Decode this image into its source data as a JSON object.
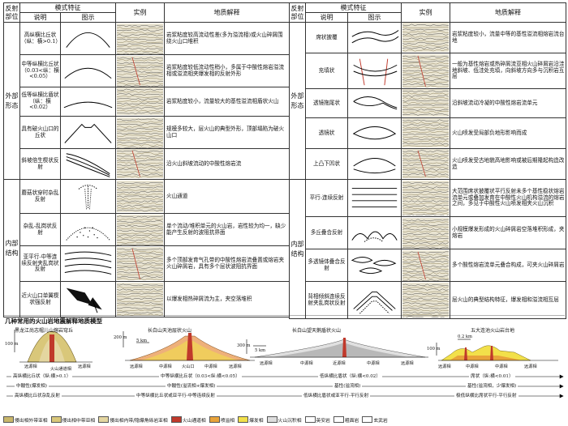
{
  "headers": {
    "region": "反射部位",
    "mode_feature": "模式特征",
    "description": "说明",
    "diagram": "图示",
    "example": "实例",
    "interpretation": "地质解释"
  },
  "left": {
    "region_outer": "外部形态",
    "region_inner": "内部结构",
    "rows": [
      {
        "desc": "高纵横比丘状（纵：横>0.1）",
        "interp": "岩浆粘度较高流动性差(多为溢流相)或火山碎屑围绕火山口堆积"
      },
      {
        "desc": "中等纵横比丘状（0.03<纵：横<0.05）",
        "interp": "岩浆粘度较低流动性稍小，多属于中酸性熔岩溢流相或溢流相夹爆发相的反射外形"
      },
      {
        "desc": "低等纵横比盾状（纵：横<0.02）",
        "interp": "岩浆粘度较小，流量较大的基性溢流相盾状火山"
      },
      {
        "desc": "具有破火山口的丘状",
        "interp": "规模多较大，层火山的典型外形，顶部塌陷为破火山口"
      },
      {
        "desc": "斜坡倍生楔状反射",
        "interp": "沿火山斜坡流动的中酸性熔岩流"
      },
      {
        "desc": "蘑菇状穿时杂乱反射",
        "interp": "火山通道"
      },
      {
        "desc": "杂乱-乱岗状反射",
        "interp": "单个流动/堆积单元的火山岩，岩性较为均一，缺少能产生反射的波阻抗界面"
      },
      {
        "desc": "亚平行-中等连续反射夹乱岗状反射",
        "interp": "多个顶部发育气孔带的中酸性熔岩流叠置或熔岩夹火山碎屑岩，具有多个层状波阻抗界面"
      },
      {
        "desc": "近火山口单翼楔状强反射",
        "interp": "以爆发相热碎屑流为主，夹空落堆积"
      }
    ]
  },
  "right": {
    "region_outer": "外部形态",
    "region_inner": "内部结构",
    "rows": [
      {
        "desc": "席状披覆",
        "interp": "岩浆粘度较小，流量中等的基性溢流相熔岩流台地"
      },
      {
        "desc": "充填状",
        "interp": "一般为基性熔岩或热碎屑流亚相火山碎屑岩沿洼地斜坡、低洼处充填，向斜坡方向多与沉积岩互层"
      },
      {
        "desc": "透镜拖尾状",
        "interp": "沿斜坡流动冷凝的中酸性熔岩流单元"
      },
      {
        "desc": "透镜状",
        "interp": "火山喷发受局部负地形影响而成"
      },
      {
        "desc": "上凸下凹状",
        "interp": "火山喷发受古地貌高地影响或被后期隆起构造改造"
      },
      {
        "desc": "平行-连续反射",
        "interp": "大范围席状披覆状平行反射未多个基性稳状熔岩流单元或叠加发育在中酸性火山机构溢流的熔岩之间，多见于中酸性火山喷发相夹火山沉积"
      },
      {
        "desc": "多丘叠合反射",
        "interp": "小规模爆发形成的火山碎屑岩空落堆积形成，夹熔岩"
      },
      {
        "desc": "多透镜体叠合反射",
        "interp": "多个酸性熔岩流单元叠合构成，可夹火山碎屑岩"
      },
      {
        "desc": "背相倾斜连续反射夹乱岗状反射",
        "interp": "层火山的典型结构特征，爆发相和溢流相互层"
      }
    ]
  },
  "models": {
    "title": "几种常用的火山岩地震解释地质模型",
    "m1": "黑龙江尚志帽儿山熔岩穹丘",
    "m2": "长白山天池层状火山",
    "m3": "长白山望天鹅盾状火山",
    "m4": "五大连池火山岩台地",
    "s1": "100 m",
    "s2": "200 m",
    "s3": "5 km",
    "s4": "300 m",
    "s5": "5 km",
    "s6": "100 m",
    "s7": "0.2 km",
    "face_far": "远源相",
    "face_mid": "中源相",
    "face_conduit": "火山通道相",
    "face_near": "近源相",
    "face_volcano": "火山口",
    "arrow1": "高纵横比丘状（纵:横>0.1）",
    "arrow2": "中等纵横比丘状（0.03<纵:横<0.05）",
    "arrow3": "低纵横比盾状（纵:横<0.02）",
    "arrow4": "席状（纵:横<0.01）",
    "arrow5": "中酸性(爆发相)",
    "arrow6": "中酸性(溢流相+爆发相)",
    "arrow7": "基性(溢流相)",
    "arrow8": "基性(溢流相，少爆发相)",
    "arrow9": "高纵横比丘状杂乱反射",
    "arrow10": "中等纵横比丘状或亚平行-中等连续反射",
    "arrow11": "低纵横比盾状或亚平行-平行反射",
    "arrow12": "极低纵横比席状平行-平行反射"
  },
  "legend": [
    {
      "label": "侵出相外带亚相",
      "color": "#c9b76b"
    },
    {
      "label": "侵出相中带亚相",
      "color": "#d9c77a"
    },
    {
      "label": "侵出相内带/隐爆角砾岩亚相",
      "color": "#e4d6a0"
    },
    {
      "label": "火山通道相",
      "color": "#c0392b"
    },
    {
      "label": "喷溢相",
      "color": "#e8a33a"
    },
    {
      "label": "爆发相",
      "color": "#f2e04a"
    },
    {
      "label": "火山沉积相",
      "color": "#dddddd"
    },
    {
      "label": "英安岩",
      "color": "#ffffff"
    },
    {
      "label": "粗面岩",
      "color": "#ffffff"
    },
    {
      "label": "玄武岩",
      "color": "#ffffff"
    }
  ]
}
